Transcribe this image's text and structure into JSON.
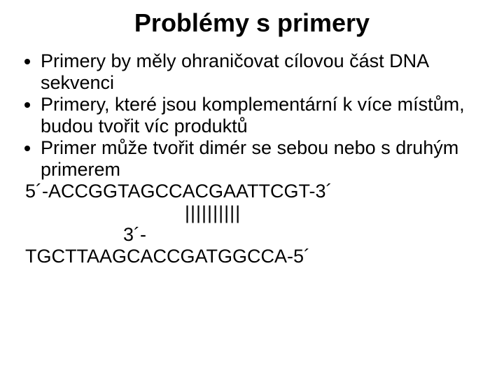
{
  "title": "Problémy s primery",
  "bullets": [
    "Primery by měly ohraničovat cílovou část DNA sekvenci",
    "Primery, které jsou komplementární k více místům, budou tvořit víc produktů",
    "Primer může tvořit dimér se sebou nebo s druhým primerem"
  ],
  "sequence_top": "5´-ACCGGTAGCCACGAATTCGT-3´",
  "bars": "||||||||||",
  "three_prime": "3´-",
  "sequence_bottom": "TGCTTAAGCACCGATGGCCA-5´",
  "colors": {
    "background": "#ffffff",
    "text": "#000000"
  },
  "fonts": {
    "title_size_pt": 36,
    "body_size_pt": 27,
    "family": "Arial"
  }
}
